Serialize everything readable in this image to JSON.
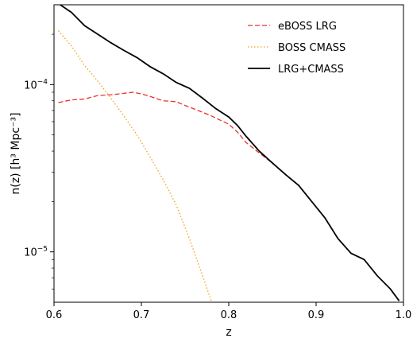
{
  "chart_data": {
    "type": "line",
    "xlabel": "z",
    "ylabel": "n(z)  [h³ Mpc⁻³]",
    "xlim": [
      0.6,
      1.0
    ],
    "ylim": [
      5e-06,
      0.0003
    ],
    "yscale": "log",
    "grid": false,
    "legend_position": "top-right",
    "x_ticks": [
      {
        "value": 0.6,
        "label": "0.6"
      },
      {
        "value": 0.7,
        "label": "0.7"
      },
      {
        "value": 0.8,
        "label": "0.8"
      },
      {
        "value": 0.9,
        "label": "0.9"
      },
      {
        "value": 1.0,
        "label": "1.0"
      }
    ],
    "y_ticks": [
      {
        "value": 1e-05,
        "base": "10",
        "exp": "−5"
      },
      {
        "value": 0.0001,
        "base": "10",
        "exp": "−4"
      }
    ],
    "series": [
      {
        "name": "eBOSS LRG",
        "color": "#e8302f",
        "dash": "dashed",
        "x": [
          0.605,
          0.62,
          0.635,
          0.65,
          0.665,
          0.675,
          0.69,
          0.7,
          0.71,
          0.725,
          0.74,
          0.75,
          0.765,
          0.78,
          0.8,
          0.81,
          0.82,
          0.835,
          0.85,
          0.865,
          0.88,
          0.895,
          0.91,
          0.925,
          0.94,
          0.955,
          0.97,
          0.985,
          0.995
        ],
        "y": [
          7.8e-05,
          8.1e-05,
          8.2e-05,
          8.6e-05,
          8.7e-05,
          8.8e-05,
          9e-05,
          8.8e-05,
          8.5e-05,
          8e-05,
          7.9e-05,
          7.5e-05,
          7e-05,
          6.5e-05,
          5.8e-05,
          5.2e-05,
          4.5e-05,
          3.9e-05,
          3.4e-05,
          2.9e-05,
          2.5e-05,
          2e-05,
          1.6e-05,
          1.2e-05,
          9.8e-06,
          9e-06,
          7.2e-06,
          6e-06,
          5.1e-06
        ]
      },
      {
        "name": "BOSS CMASS",
        "color": "#f2a118",
        "dash": "dotted",
        "x": [
          0.605,
          0.62,
          0.635,
          0.65,
          0.665,
          0.68,
          0.695,
          0.71,
          0.725,
          0.74,
          0.755,
          0.77,
          0.78
        ],
        "y": [
          0.00021,
          0.00017,
          0.00013,
          0.000105,
          8.3e-05,
          6.5e-05,
          5e-05,
          3.7e-05,
          2.7e-05,
          1.9e-05,
          1.2e-05,
          7.2e-06,
          5.1e-06
        ]
      },
      {
        "name": "LRG+CMASS",
        "color": "#000000",
        "dash": "solid",
        "x": [
          0.605,
          0.62,
          0.635,
          0.65,
          0.665,
          0.68,
          0.695,
          0.71,
          0.725,
          0.74,
          0.755,
          0.77,
          0.785,
          0.8,
          0.81,
          0.82,
          0.835,
          0.85,
          0.865,
          0.88,
          0.895,
          0.91,
          0.925,
          0.94,
          0.955,
          0.97,
          0.985,
          0.995
        ],
        "y": [
          0.000305,
          0.00027,
          0.000225,
          0.0002,
          0.000178,
          0.00016,
          0.000145,
          0.000128,
          0.000116,
          0.000103,
          9.5e-05,
          8.3e-05,
          7.2e-05,
          6.4e-05,
          5.7e-05,
          4.9e-05,
          4e-05,
          3.4e-05,
          2.9e-05,
          2.5e-05,
          2e-05,
          1.6e-05,
          1.2e-05,
          9.8e-06,
          9e-06,
          7.2e-06,
          6e-06,
          5.1e-06
        ]
      }
    ]
  }
}
